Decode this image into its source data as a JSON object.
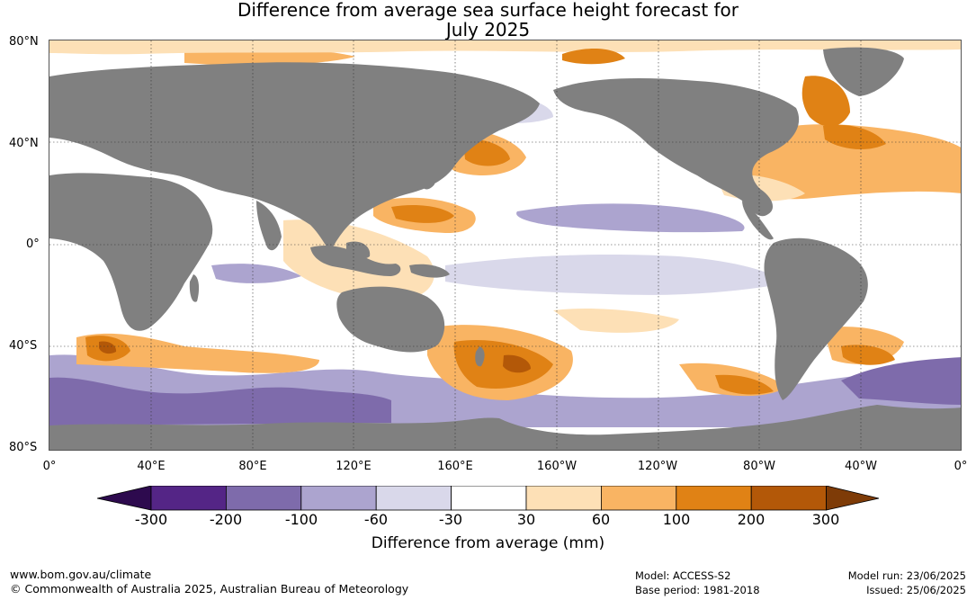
{
  "title": {
    "line1": "Difference from average sea surface height forecast for",
    "line2": "July 2025"
  },
  "map": {
    "land_color": "#808080",
    "lat_labels": [
      "80°N",
      "40°N",
      "0°",
      "40°S",
      "80°S"
    ],
    "lon_labels": [
      "0°",
      "40°E",
      "80°E",
      "120°E",
      "160°E",
      "160°W",
      "120°W",
      "80°W",
      "40°W",
      "0°"
    ]
  },
  "legend": {
    "title": "Difference from average (mm)",
    "ticks": [
      "-300",
      "-200",
      "-100",
      "-60",
      "-30",
      "30",
      "60",
      "100",
      "200",
      "300"
    ],
    "colors": {
      "below_-300": "#2d0a4e",
      "-300_-200": "#542586",
      "-200_-100": "#7e6bab",
      "-100_-60": "#aca4cf",
      "-60_-30": "#d9d8ea",
      "-30_30": "#ffffff",
      "30_60": "#fde0b6",
      "60_100": "#f9b463",
      "100_200": "#e08215",
      "200_300": "#b35808",
      "above_300": "#7e3b07"
    }
  },
  "footer": {
    "url": "www.bom.gov.au/climate",
    "copyright": "© Commonwealth of Australia 2025, Australian Bureau of Meteorology",
    "model": "Model: ACCESS-S2",
    "base_period": "Base period: 1981-2018",
    "model_run": "Model run: 23/06/2025",
    "issued": "Issued: 25/06/2025"
  }
}
